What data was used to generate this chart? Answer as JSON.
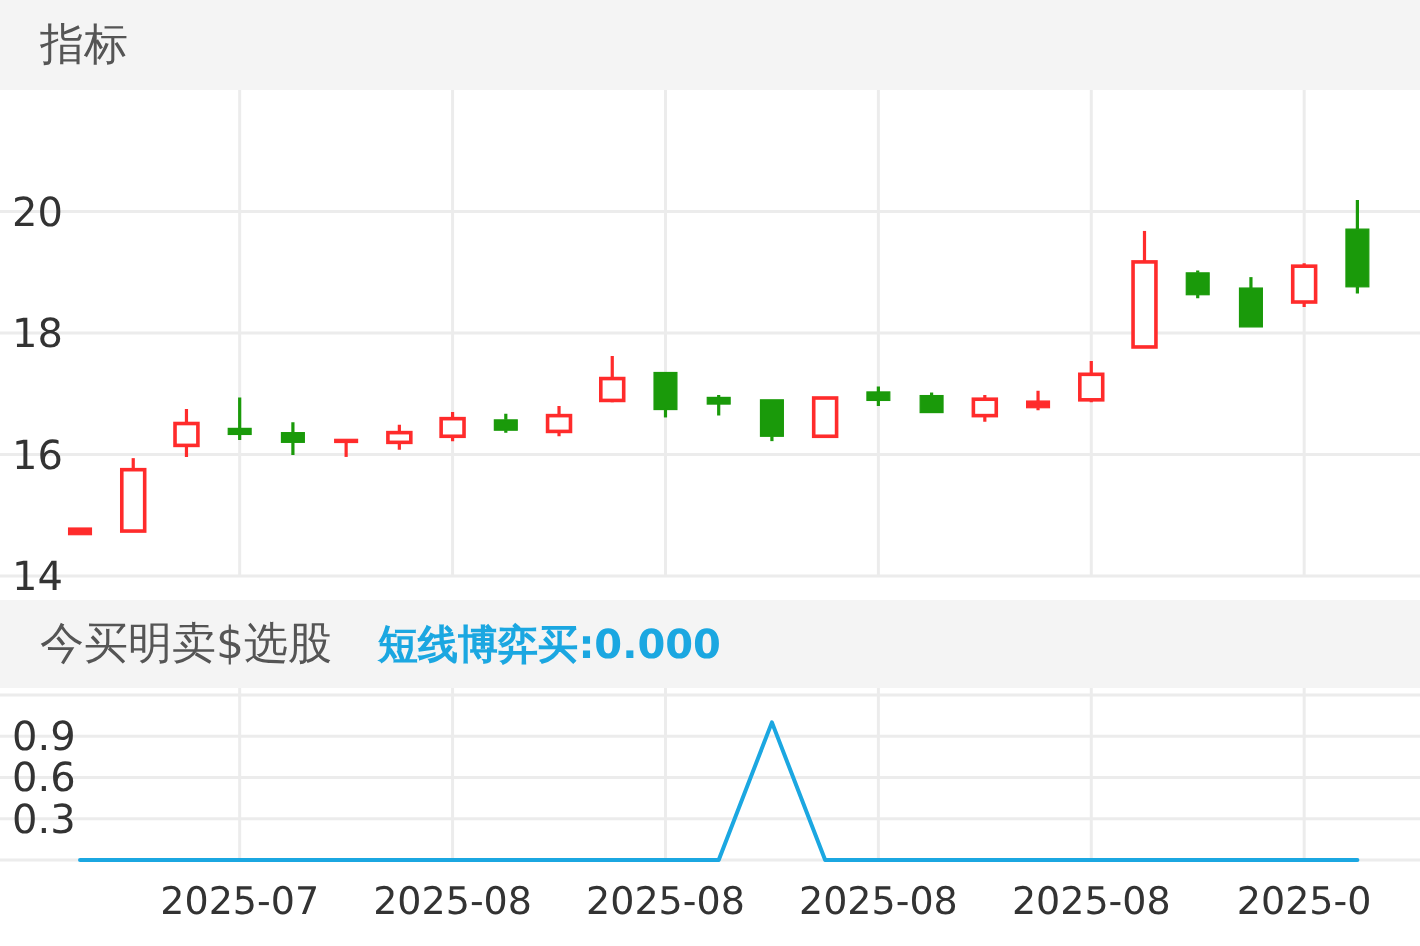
{
  "chart_data": [
    {
      "type": "candlestick",
      "title": "指标",
      "categories": [
        null,
        null,
        null,
        "2025-07",
        null,
        null,
        null,
        "2025-08",
        null,
        null,
        null,
        "2025-08",
        null,
        null,
        null,
        "2025-08",
        null,
        null,
        null,
        "2025-08",
        null,
        null,
        null,
        "2025-0",
        null
      ],
      "ohlc": [
        [
          14.68,
          14.79,
          14.68,
          14.79
        ],
        [
          14.74,
          15.94,
          14.74,
          15.75
        ],
        [
          16.15,
          16.75,
          15.96,
          16.51
        ],
        [
          16.43,
          16.94,
          16.24,
          16.33
        ],
        [
          16.36,
          16.53,
          15.99,
          16.2
        ],
        [
          16.2,
          16.25,
          15.96,
          16.25
        ],
        [
          16.2,
          16.49,
          16.08,
          16.36
        ],
        [
          16.3,
          16.7,
          16.22,
          16.59
        ],
        [
          16.57,
          16.67,
          16.36,
          16.4
        ],
        [
          16.38,
          16.8,
          16.3,
          16.64
        ],
        [
          16.89,
          17.62,
          16.86,
          17.25
        ],
        [
          17.35,
          17.35,
          16.61,
          16.74
        ],
        [
          16.94,
          16.98,
          16.64,
          16.83
        ],
        [
          16.9,
          16.9,
          16.22,
          16.3
        ],
        [
          16.3,
          16.93,
          16.3,
          16.93
        ],
        [
          17.03,
          17.12,
          16.8,
          16.89
        ],
        [
          16.97,
          17.02,
          16.69,
          16.69
        ],
        [
          16.64,
          16.98,
          16.54,
          16.91
        ],
        [
          16.77,
          17.05,
          16.73,
          16.88
        ],
        [
          16.9,
          17.54,
          16.86,
          17.32
        ],
        [
          17.77,
          19.68,
          17.77,
          19.17
        ],
        [
          18.99,
          19.03,
          18.57,
          18.63
        ],
        [
          18.74,
          18.92,
          18.1,
          18.1
        ],
        [
          18.51,
          19.15,
          18.43,
          19.1
        ],
        [
          19.71,
          20.19,
          18.65,
          18.76
        ]
      ],
      "colors": [
        "#ff2b2b",
        "#ff2b2b",
        "#ff2b2b",
        "#1a9a0a",
        "#1a9a0a",
        "#ff2b2b",
        "#ff2b2b",
        "#ff2b2b",
        "#1a9a0a",
        "#ff2b2b",
        "#ff2b2b",
        "#1a9a0a",
        "#1a9a0a",
        "#1a9a0a",
        "#ff2b2b",
        "#1a9a0a",
        "#1a9a0a",
        "#ff2b2b",
        "#ff2b2b",
        "#ff2b2b",
        "#ff2b2b",
        "#1a9a0a",
        "#1a9a0a",
        "#ff2b2b",
        "#1a9a0a"
      ],
      "ylim": [
        14,
        22
      ],
      "yticks": [
        14,
        16,
        18,
        20
      ],
      "grid": true,
      "tick_labels": "y"
    },
    {
      "type": "line",
      "title": "今买明卖$选股",
      "categories": [
        null,
        null,
        null,
        "2025-07",
        null,
        null,
        null,
        "2025-08",
        null,
        null,
        null,
        "2025-08",
        null,
        null,
        null,
        "2025-08",
        null,
        null,
        null,
        "2025-08",
        null,
        null,
        null,
        "2025-0",
        null
      ],
      "series": [
        {
          "name": "短线博弈买:0.000",
          "color": "#1ba7e1",
          "values": [
            0,
            0,
            0,
            0,
            0,
            0,
            0,
            0,
            0,
            0,
            0,
            0,
            0,
            1,
            0,
            0,
            0,
            0,
            0,
            0,
            0,
            0,
            0,
            0,
            0
          ]
        }
      ],
      "ylim": [
        0,
        1.25
      ],
      "yticks": [
        {
          "value": 0,
          "label": null
        },
        0.3,
        0.6,
        0.9,
        {
          "value": 1.2,
          "label": null
        }
      ],
      "grid": true,
      "legend": "top"
    }
  ]
}
